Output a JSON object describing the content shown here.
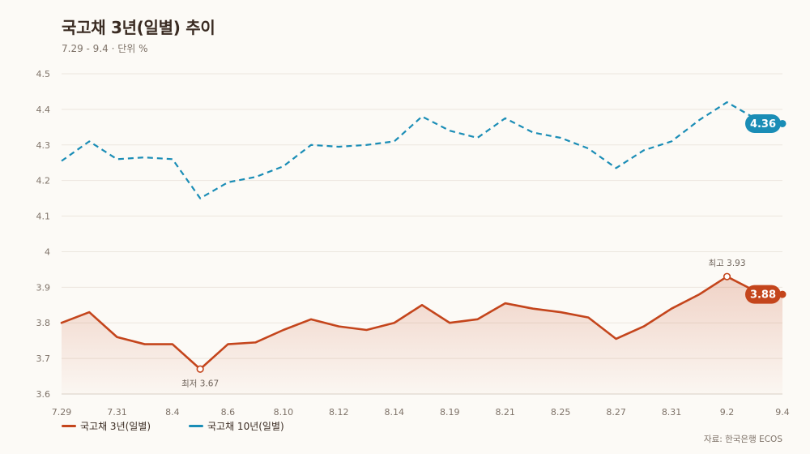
{
  "colors": {
    "background": "#fcfaf6",
    "text": "#3a2b22",
    "muted": "#7e7268",
    "grid": "#ece6de",
    "axis": "#d9d0c5"
  },
  "chart_data": {
    "type": "line",
    "title": "국고채 3년(일별) 추이",
    "subtitle": "7.29 - 9.4 · 단위 %",
    "source": "자료: 한국은행 ECOS",
    "x": [
      "7.29",
      "",
      "7.31",
      "",
      "8.4",
      "",
      "8.6",
      "",
      "8.10",
      "",
      "8.12",
      "",
      "8.14",
      "",
      "8.19",
      "",
      "8.21",
      "",
      "8.25",
      "",
      "8.27",
      "",
      "8.31",
      "",
      "9.2",
      "",
      "9.4"
    ],
    "ylim": [
      3.6,
      4.5
    ],
    "y_ticks": [
      3.6,
      3.7,
      3.8,
      3.9,
      4,
      4.1,
      4.2,
      4.3,
      4.4,
      4.5
    ],
    "grid": true,
    "legend": "bottom-left",
    "series": [
      {
        "name": "국고채 3년(일별)",
        "color": "#c4451c",
        "line": "solid",
        "area": true,
        "end_label": "3.88",
        "values": [
          3.8,
          3.83,
          3.76,
          3.74,
          3.74,
          3.67,
          3.74,
          3.745,
          3.78,
          3.81,
          3.79,
          3.78,
          3.8,
          3.85,
          3.8,
          3.81,
          3.855,
          3.84,
          3.83,
          3.815,
          3.755,
          3.79,
          3.84,
          3.88,
          3.93,
          3.89,
          3.88
        ]
      },
      {
        "name": "국고채 10년(일별)",
        "color": "#1a8db6",
        "line": "dashed",
        "area": false,
        "end_label": "4.36",
        "values": [
          4.255,
          4.31,
          4.26,
          4.265,
          4.26,
          4.15,
          4.195,
          4.21,
          4.24,
          4.3,
          4.295,
          4.3,
          4.31,
          4.38,
          4.34,
          4.32,
          4.375,
          4.335,
          4.32,
          4.29,
          4.235,
          4.285,
          4.31,
          4.37,
          4.42,
          4.375,
          4.36
        ]
      }
    ],
    "annotations": [
      {
        "series": 0,
        "index": 5,
        "text": "최저 3.67",
        "placement": "below"
      },
      {
        "series": 0,
        "index": 24,
        "text": "최고 3.93",
        "placement": "above"
      }
    ]
  }
}
